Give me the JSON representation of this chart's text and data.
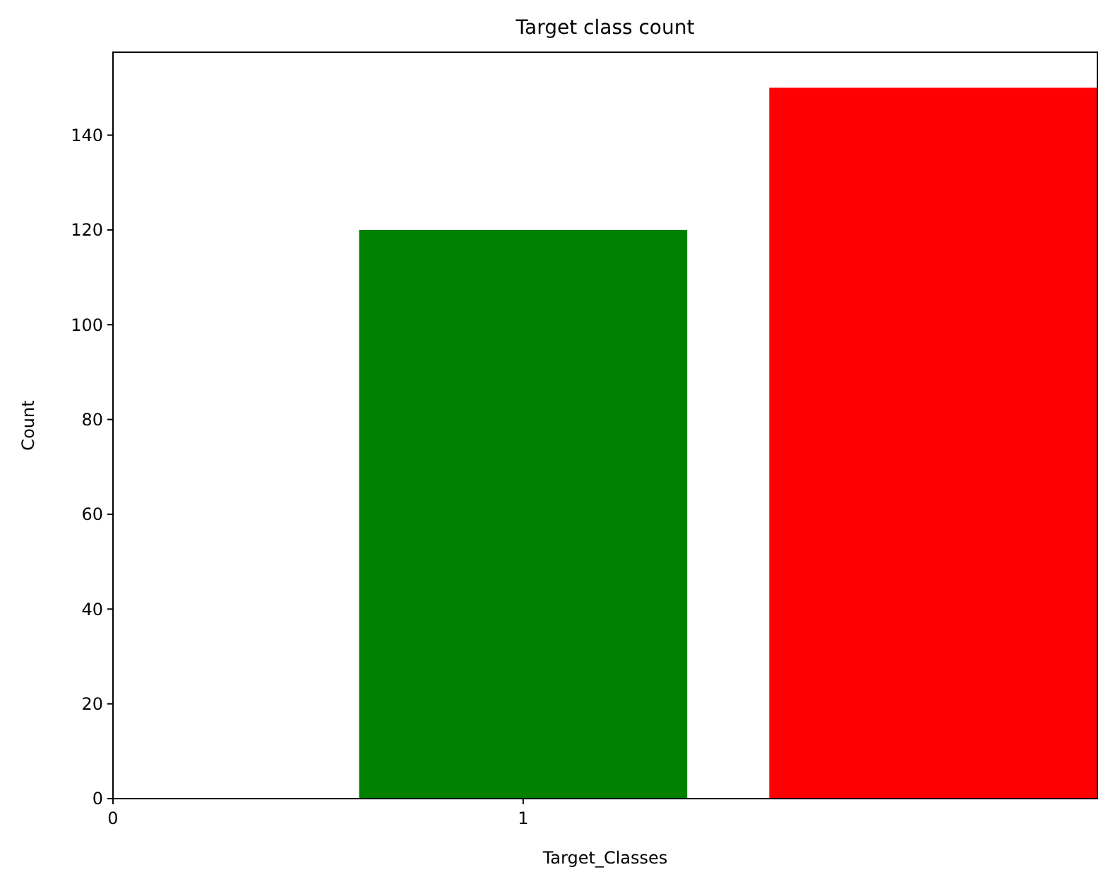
{
  "chart_data": {
    "type": "bar",
    "title": "Target class count",
    "xlabel": "Target_Classes",
    "ylabel": "Count",
    "x": [
      1,
      2
    ],
    "values": [
      120,
      150
    ],
    "colors": [
      "#008000",
      "#ff0000"
    ],
    "xlim": [
      0,
      2.4
    ],
    "xticks": [
      0,
      1
    ],
    "ylim": [
      0,
      157.5
    ],
    "yticks": [
      0,
      20,
      40,
      60,
      80,
      100,
      120,
      140
    ]
  }
}
